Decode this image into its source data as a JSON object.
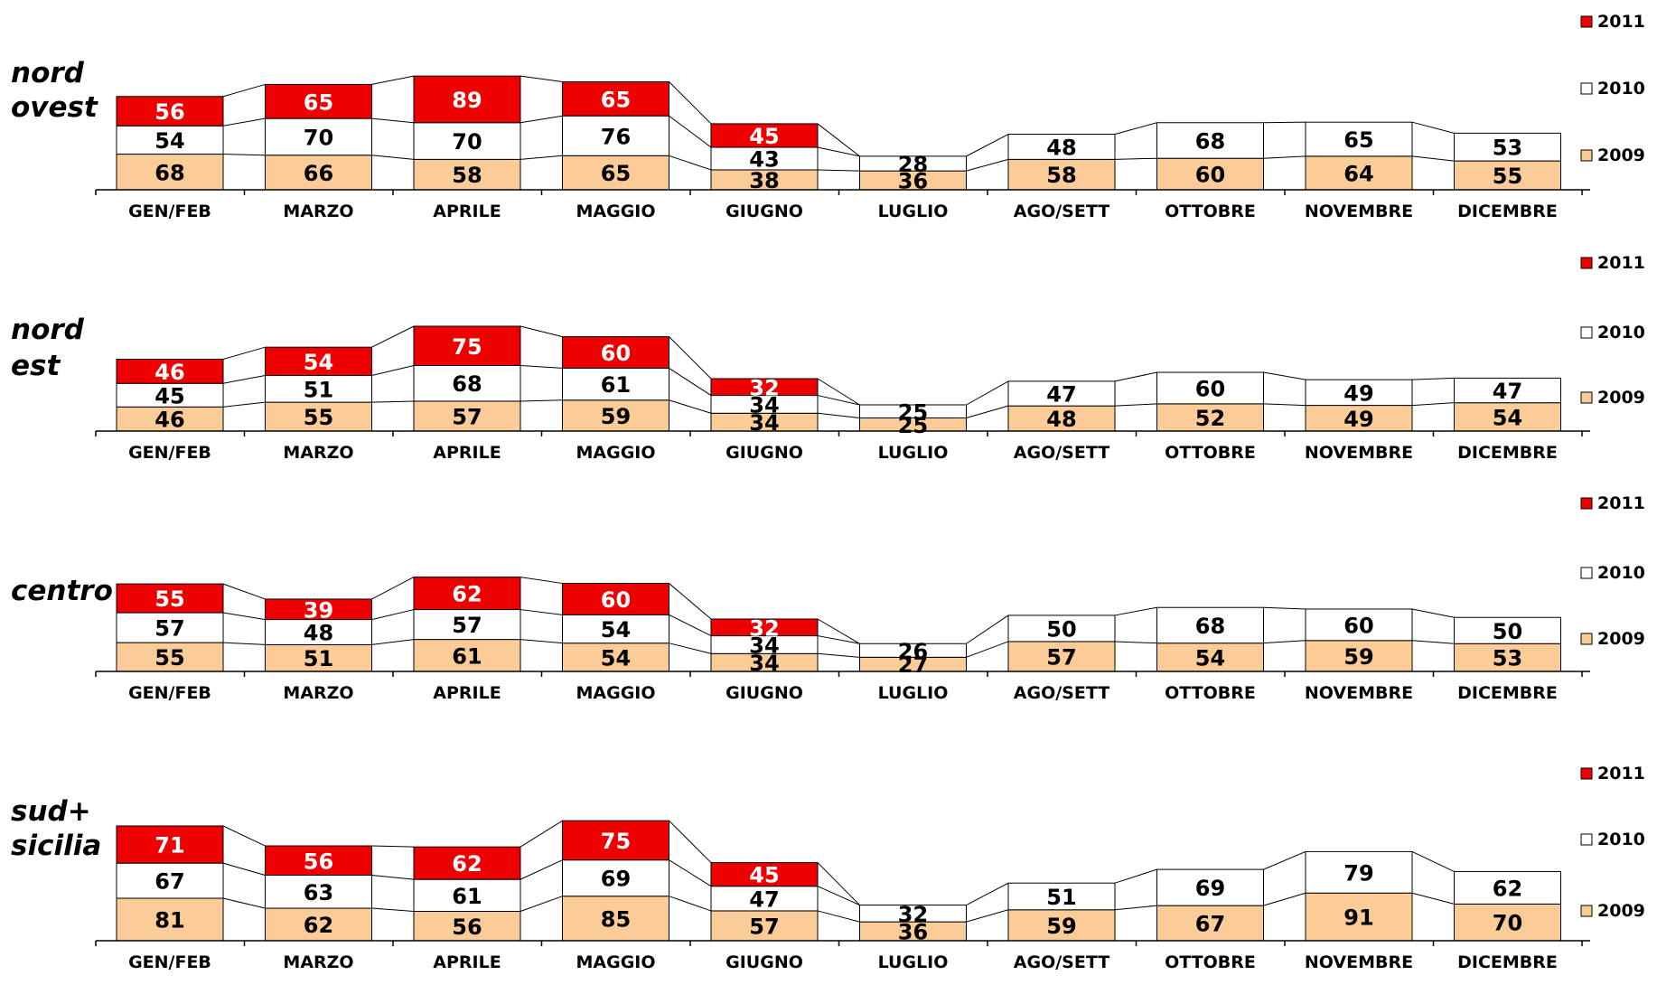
{
  "chart_data": [
    {
      "type": "bar",
      "region": "nord ovest",
      "categories": [
        "GEN/FEB",
        "MARZO",
        "APRILE",
        "MAGGIO",
        "GIUGNO",
        "LUGLIO",
        "AGO/SETT",
        "OTTOBRE",
        "NOVEMBRE",
        "DICEMBRE"
      ],
      "series": [
        {
          "name": "2009",
          "values": [
            68,
            66,
            58,
            65,
            38,
            36,
            58,
            60,
            64,
            55
          ]
        },
        {
          "name": "2010",
          "values": [
            54,
            70,
            70,
            76,
            43,
            28,
            48,
            68,
            65,
            53
          ]
        },
        {
          "name": "2011",
          "values": [
            56,
            65,
            89,
            65,
            45,
            null,
            null,
            null,
            null,
            null
          ]
        }
      ],
      "stacked": true,
      "legend": "right"
    },
    {
      "type": "bar",
      "region": "nord est",
      "categories": [
        "GEN/FEB",
        "MARZO",
        "APRILE",
        "MAGGIO",
        "GIUGNO",
        "LUGLIO",
        "AGO/SETT",
        "OTTOBRE",
        "NOVEMBRE",
        "DICEMBRE"
      ],
      "series": [
        {
          "name": "2009",
          "values": [
            46,
            55,
            57,
            59,
            34,
            25,
            48,
            52,
            49,
            54
          ]
        },
        {
          "name": "2010",
          "values": [
            45,
            51,
            68,
            61,
            34,
            25,
            47,
            60,
            49,
            47
          ]
        },
        {
          "name": "2011",
          "values": [
            46,
            54,
            75,
            60,
            32,
            null,
            null,
            null,
            null,
            null
          ]
        }
      ],
      "stacked": true,
      "legend": "right"
    },
    {
      "type": "bar",
      "region": "centro",
      "categories": [
        "GEN/FEB",
        "MARZO",
        "APRILE",
        "MAGGIO",
        "GIUGNO",
        "LUGLIO",
        "AGO/SETT",
        "OTTOBRE",
        "NOVEMBRE",
        "DICEMBRE"
      ],
      "series": [
        {
          "name": "2009",
          "values": [
            55,
            51,
            61,
            54,
            34,
            27,
            57,
            54,
            59,
            53
          ]
        },
        {
          "name": "2010",
          "values": [
            57,
            48,
            57,
            54,
            34,
            26,
            50,
            68,
            60,
            50
          ]
        },
        {
          "name": "2011",
          "values": [
            55,
            39,
            62,
            60,
            32,
            null,
            null,
            null,
            null,
            null
          ]
        }
      ],
      "stacked": true,
      "legend": "right"
    },
    {
      "type": "bar",
      "region": "sud+ sicilia",
      "categories": [
        "GEN/FEB",
        "MARZO",
        "APRILE",
        "MAGGIO",
        "GIUGNO",
        "LUGLIO",
        "AGO/SETT",
        "OTTOBRE",
        "NOVEMBRE",
        "DICEMBRE"
      ],
      "series": [
        {
          "name": "2009",
          "values": [
            81,
            62,
            56,
            85,
            57,
            36,
            59,
            67,
            91,
            70
          ]
        },
        {
          "name": "2010",
          "values": [
            67,
            63,
            61,
            69,
            47,
            32,
            51,
            69,
            79,
            62
          ]
        },
        {
          "name": "2011",
          "values": [
            71,
            56,
            62,
            75,
            45,
            null,
            null,
            null,
            null,
            null
          ]
        }
      ],
      "stacked": true,
      "legend": "right"
    }
  ],
  "colors": {
    "2009": "#FBCB98",
    "2010": "#FFFFFF",
    "2011": "#EF0000",
    "label_on_2011": "#FFFFFF",
    "label_default": "#000000"
  }
}
